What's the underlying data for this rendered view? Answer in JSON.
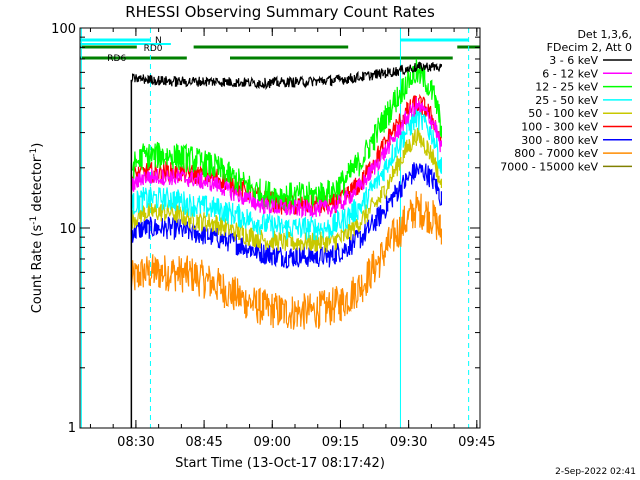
{
  "chart_data": {
    "type": "line",
    "title": "RHESSI Observing Summary Count Rates",
    "xlabel": "Start Time (13-Oct-17 08:17:42)",
    "ylabel": "Count Rate (s⁻¹ detector⁻¹)",
    "ylabel_main": "Count Rate (s",
    "ylabel_sup1": "-1",
    "ylabel_mid": " detector",
    "ylabel_sup2": "-1",
    "ylabel_end": ")",
    "y_scale": "log",
    "ylim": [
      1,
      100
    ],
    "y_ticks": [
      "1",
      "10",
      "100"
    ],
    "xlim_minutes": [
      0,
      88
    ],
    "x_tick_labels": [
      "08:30",
      "08:45",
      "09:00",
      "09:15",
      "09:30",
      "09:45"
    ],
    "x_tick_minutes": [
      12.3,
      27.3,
      42.3,
      57.3,
      72.3,
      87.3
    ],
    "grid": false,
    "legend_position": "right",
    "legend_header": [
      "Det 1,3,6,",
      "FDecim 2, Att 0"
    ],
    "series": [
      {
        "name": "3 - 6 keV",
        "color": "#000000",
        "x": [
          11.3,
          12,
          16,
          20,
          30,
          40,
          50,
          57,
          62,
          66,
          70,
          73,
          76,
          78,
          79.5
        ],
        "values": [
          55,
          56,
          55,
          54,
          54,
          53,
          54,
          55,
          57,
          59,
          61,
          63,
          64,
          64,
          63
        ]
      },
      {
        "name": "6 - 12 keV",
        "color": "#ff00ff",
        "x": [
          11.3,
          14,
          20,
          25,
          30,
          35,
          40,
          45,
          50,
          55,
          58,
          62,
          66,
          69,
          72,
          74,
          76,
          78,
          79.5
        ],
        "values": [
          16,
          18,
          18,
          17.5,
          16.5,
          14.5,
          13,
          12.5,
          12.5,
          12.5,
          13.5,
          16.5,
          22,
          28,
          36,
          41,
          38,
          33,
          25
        ]
      },
      {
        "name": "12 - 25 keV",
        "color": "#00ff00",
        "x": [
          11.3,
          14,
          20,
          25,
          30,
          35,
          40,
          45,
          50,
          55,
          58,
          62,
          66,
          69,
          72,
          74,
          76,
          78,
          79.5
        ],
        "values": [
          20,
          23,
          23,
          22,
          20,
          17,
          15,
          14.5,
          14.5,
          15,
          17,
          22,
          32,
          42,
          54,
          60,
          55,
          45,
          32
        ]
      },
      {
        "name": "25 - 50 keV",
        "color": "#00ffff",
        "x": [
          11.3,
          14,
          20,
          25,
          30,
          35,
          40,
          45,
          50,
          55,
          58,
          62,
          66,
          69,
          72,
          74,
          76,
          78,
          79.5
        ],
        "values": [
          13,
          14,
          14,
          13,
          12.5,
          11.5,
          10.5,
          10,
          10,
          10,
          11,
          13,
          18,
          24,
          31,
          36,
          33,
          28,
          20
        ]
      },
      {
        "name": "50 - 100 keV",
        "color": "#c8c800",
        "x": [
          11.3,
          14,
          20,
          25,
          30,
          35,
          40,
          45,
          50,
          55,
          58,
          62,
          66,
          69,
          72,
          74,
          76,
          78,
          79.5
        ],
        "values": [
          11,
          12,
          12,
          11,
          10.5,
          9.5,
          8.8,
          8.5,
          8.5,
          8.5,
          9,
          11,
          14,
          19,
          25,
          29,
          26,
          22,
          16
        ]
      },
      {
        "name": "100 - 300 keV",
        "color": "#ff0000",
        "x": [
          11.3,
          14,
          20,
          25,
          30,
          35,
          40,
          45,
          50,
          55,
          58,
          62,
          66,
          69,
          72,
          74,
          76,
          78,
          79.5
        ],
        "values": [
          18,
          19,
          19,
          18.5,
          18,
          16,
          14,
          13,
          13,
          13,
          14,
          17,
          24,
          31,
          38,
          42,
          40,
          34,
          27
        ]
      },
      {
        "name": "300 - 800 keV",
        "color": "#0000ff",
        "x": [
          11.3,
          14,
          20,
          25,
          30,
          35,
          40,
          45,
          50,
          55,
          58,
          62,
          66,
          69,
          72,
          74,
          76,
          78,
          79.5
        ],
        "values": [
          9.5,
          10,
          10,
          9.5,
          9,
          8.3,
          7.5,
          7.2,
          7.2,
          7.2,
          7.8,
          9,
          11.5,
          14.5,
          17.5,
          19.5,
          19,
          17,
          14
        ]
      },
      {
        "name": "800 - 7000 keV",
        "color": "#ff8c00",
        "x": [
          11.3,
          14,
          20,
          25,
          30,
          35,
          40,
          45,
          50,
          55,
          58,
          62,
          66,
          69,
          72,
          74,
          76,
          78,
          79.5
        ],
        "values": [
          5.5,
          6,
          6,
          5.8,
          5.2,
          4.5,
          4,
          3.8,
          3.8,
          4,
          4.3,
          5.2,
          7,
          9,
          11,
          12.5,
          12,
          11,
          9.5
        ]
      },
      {
        "name": "7000 - 15000 keV",
        "color": "#808000",
        "x": [],
        "values": []
      }
    ],
    "flags": [
      {
        "label": "N",
        "color": "#00ffff"
      },
      {
        "label": "RD0",
        "color": "#008000"
      },
      {
        "label": "RD6",
        "color": "#008000"
      }
    ],
    "footer_date": "2-Sep-2022 02:41"
  }
}
